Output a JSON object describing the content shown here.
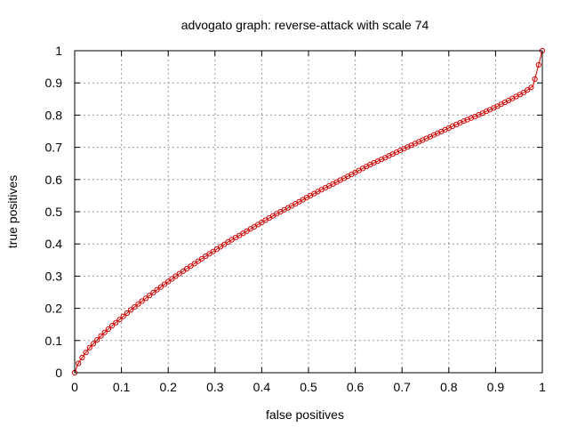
{
  "chart_data": {
    "type": "line",
    "title": "advogato graph: reverse-attack with scale 74",
    "xlabel": "false positives",
    "ylabel": "true positives",
    "xlim": [
      0,
      1
    ],
    "ylim": [
      0,
      1
    ],
    "xticks": [
      "0",
      "0.1",
      "0.2",
      "0.3",
      "0.4",
      "0.5",
      "0.6",
      "0.7",
      "0.8",
      "0.9",
      "1"
    ],
    "yticks": [
      "0",
      "0.1",
      "0.2",
      "0.3",
      "0.4",
      "0.5",
      "0.6",
      "0.7",
      "0.8",
      "0.9",
      "1"
    ],
    "grid": true,
    "legend": "none",
    "series": [
      {
        "color": "#cc0000",
        "marker": "circle",
        "x": [
          0,
          0.005,
          0.01,
          0.02,
          0.03,
          0.04,
          0.05,
          0.06,
          0.07,
          0.08,
          0.09,
          0.1,
          0.12,
          0.14,
          0.16,
          0.18,
          0.2,
          0.22,
          0.25,
          0.28,
          0.3,
          0.33,
          0.36,
          0.4,
          0.43,
          0.46,
          0.5,
          0.53,
          0.56,
          0.6,
          0.63,
          0.66,
          0.7,
          0.73,
          0.76,
          0.8,
          0.83,
          0.86,
          0.9,
          0.93,
          0.96,
          0.98,
          1.0
        ],
        "y": [
          0,
          0.02,
          0.035,
          0.055,
          0.075,
          0.09,
          0.105,
          0.12,
          0.133,
          0.146,
          0.158,
          0.17,
          0.195,
          0.218,
          0.24,
          0.262,
          0.283,
          0.304,
          0.333,
          0.362,
          0.38,
          0.408,
          0.433,
          0.467,
          0.492,
          0.515,
          0.547,
          0.57,
          0.592,
          0.622,
          0.645,
          0.665,
          0.693,
          0.713,
          0.733,
          0.76,
          0.78,
          0.798,
          0.825,
          0.847,
          0.87,
          0.89,
          1.0
        ]
      }
    ]
  }
}
